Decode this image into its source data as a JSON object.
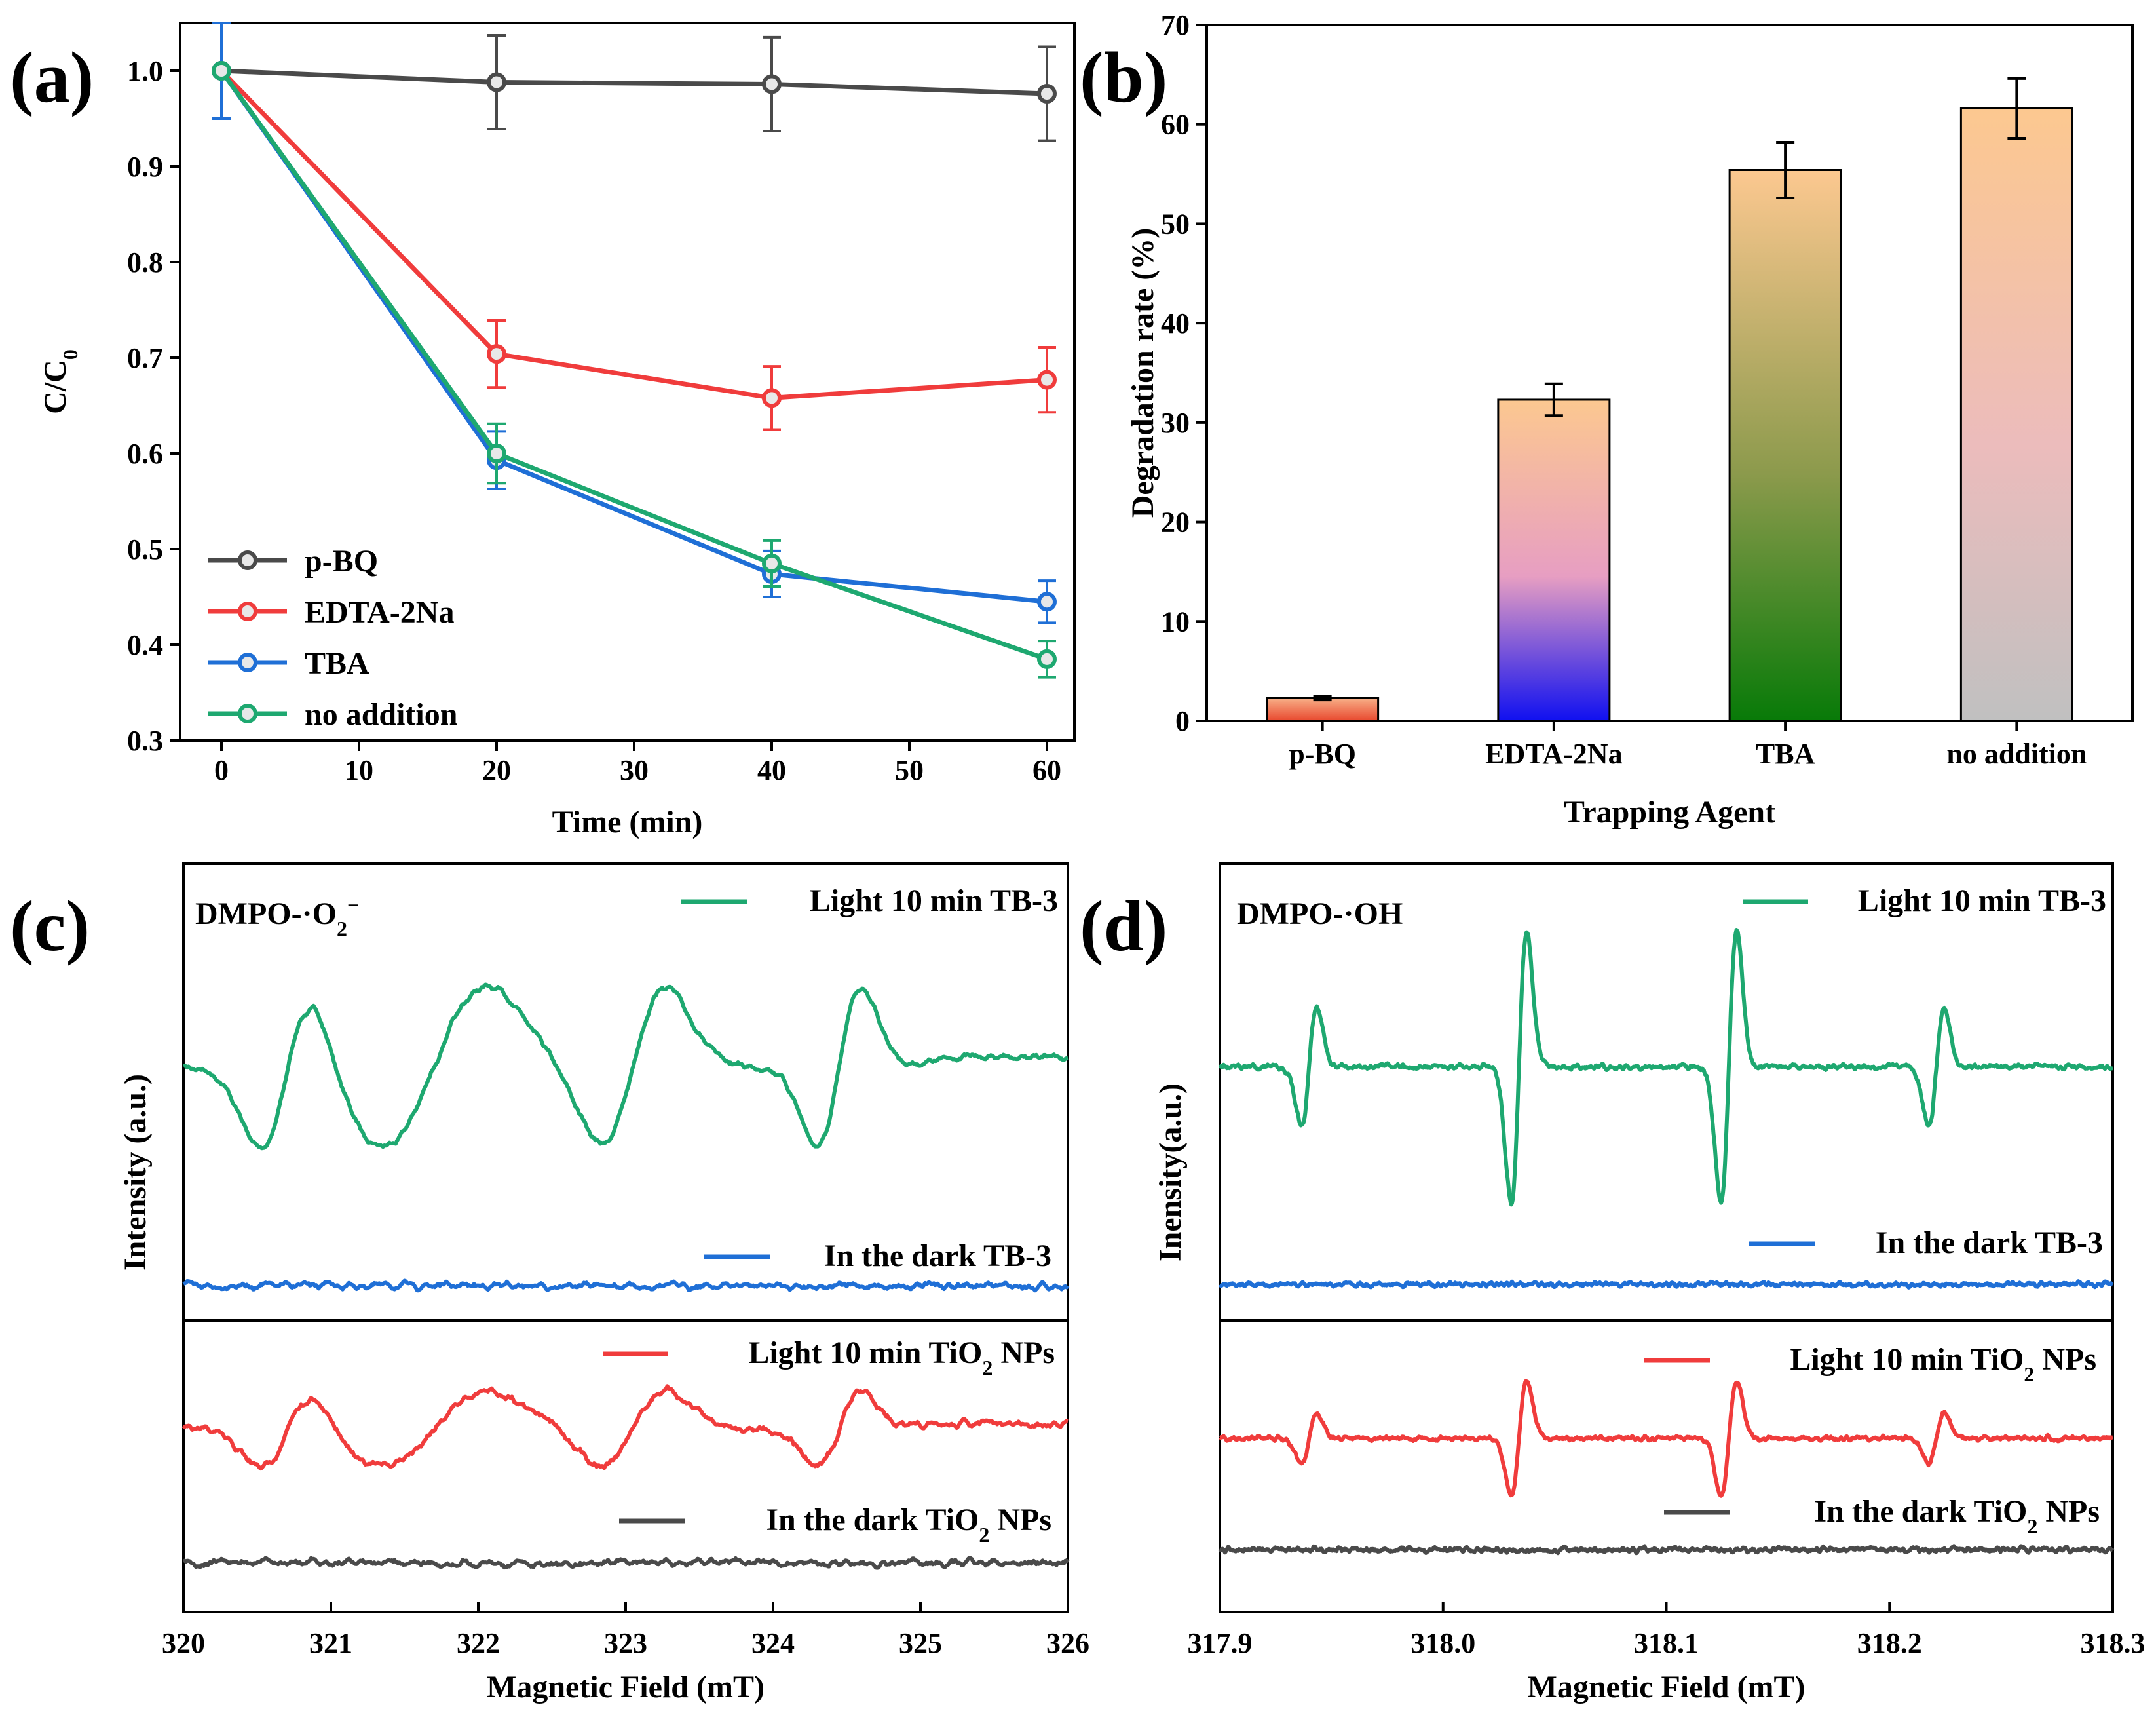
{
  "chart_data": [
    {
      "panel": "(a)",
      "type": "line",
      "xlabel": "Time (min)",
      "ylabel": "C/C0",
      "ylabel_main": "C/C",
      "ylabel_sub": "0",
      "xlim": [
        -3,
        62
      ],
      "ylim": [
        0.3,
        1.05
      ],
      "xticks": [
        0,
        10,
        20,
        30,
        40,
        50,
        60
      ],
      "yticks": [
        0.3,
        0.4,
        0.5,
        0.6,
        0.7,
        0.8,
        0.9,
        1.0
      ],
      "ytick_labels": [
        "0.3",
        "0.4",
        "0.5",
        "0.6",
        "0.7",
        "0.8",
        "0.9",
        "1.0"
      ],
      "x": [
        0,
        20,
        40,
        60
      ],
      "legend_position": "bottom-left",
      "series": [
        {
          "name": "p-BQ",
          "color": "#4a4a4a",
          "values": [
            1.0,
            0.988,
            0.986,
            0.976
          ],
          "errors": [
            0.0,
            0.049,
            0.049,
            0.049
          ]
        },
        {
          "name": "EDTA-2Na",
          "color": "#f03c3c",
          "values": [
            1.0,
            0.704,
            0.658,
            0.677
          ],
          "errors": [
            0.0,
            0.035,
            0.033,
            0.034
          ]
        },
        {
          "name": "TBA",
          "color": "#1f6fd6",
          "values": [
            1.0,
            0.593,
            0.474,
            0.445
          ],
          "errors": [
            0.05,
            0.03,
            0.024,
            0.022
          ]
        },
        {
          "name": "no addition",
          "color": "#1ea870",
          "values": [
            1.0,
            0.6,
            0.485,
            0.385
          ],
          "errors": [
            0.0,
            0.031,
            0.024,
            0.019
          ]
        }
      ]
    },
    {
      "panel": "(b)",
      "type": "bar",
      "xlabel": "Trapping Agent",
      "ylabel": "Degradation rate (%)",
      "ylim": [
        0,
        70
      ],
      "yticks": [
        0,
        10,
        20,
        30,
        40,
        50,
        60,
        70
      ],
      "categories": [
        "p-BQ",
        "EDTA-2Na",
        "TBA",
        "no addition"
      ],
      "values": [
        2.3,
        32.3,
        55.4,
        61.6
      ],
      "errors": [
        0.2,
        1.6,
        2.8,
        3.0
      ],
      "bar_gradients": [
        {
          "top": "#f8b088",
          "bottom": "#e8482e"
        },
        {
          "top": "#fcc890",
          "mid": "#e79ec2",
          "bottom": "#1010f0"
        },
        {
          "top": "#fcc890",
          "mid": "#8c9a4c",
          "bottom": "#087a08"
        },
        {
          "top": "#fcc890",
          "mid": "#ecbcbc",
          "bottom": "#c0c0c0"
        }
      ]
    },
    {
      "panel": "(c)",
      "type": "line",
      "title": "DMPO-·O2⁻",
      "title_main": "DMPO-·O",
      "title_sub": "2",
      "title_sup": "−",
      "xlabel": "Magnetic Field (mT)",
      "ylabel": "Intensity (a.u.)",
      "xlim": [
        320,
        326
      ],
      "xticks": [
        320,
        321,
        322,
        323,
        324,
        325,
        326
      ],
      "xtick_labels": [
        "320",
        "321",
        "322",
        "323",
        "324",
        "325",
        "326"
      ],
      "series": [
        {
          "name": "Light 10 min TB-3",
          "label_main": "Light 10 min TB-3",
          "label_sub": "",
          "color": "#1ea870",
          "sample": "TB-3",
          "condition": "light"
        },
        {
          "name": "In the dark TB-3",
          "label_main": "In the dark TB-3",
          "label_sub": "",
          "color": "#1f6fd6",
          "sample": "TB-3",
          "condition": "dark"
        },
        {
          "name": "Light 10 min TiO2 NPs",
          "label_main": "Light 10 min TiO",
          "label_sub": "2",
          "label_tail": " NPs",
          "color": "#f03c3c",
          "sample": "TiO2 NPs",
          "condition": "light"
        },
        {
          "name": "In the dark TiO2 NPs",
          "label_main": "In the dark TiO",
          "label_sub": "2",
          "label_tail": " NPs",
          "color": "#4a4a4a",
          "sample": "TiO2 NPs",
          "condition": "dark"
        }
      ],
      "signal_centers": [
        320.7,
        321.7,
        323.05,
        324.45
      ],
      "signal_widths": [
        0.36,
        0.72,
        0.44,
        0.3
      ]
    },
    {
      "panel": "(d)",
      "type": "line",
      "title": "DMPO-·OH",
      "xlabel": "Magnetic Field (mT)",
      "ylabel": "Inensity(a.u.)",
      "xlim": [
        317.9,
        318.3
      ],
      "xticks": [
        317.9,
        318.0,
        318.1,
        318.2,
        318.3
      ],
      "xtick_labels": [
        "317.9",
        "318.0",
        "318.1",
        "318.2",
        "318.3"
      ],
      "series": [
        {
          "name": "Light 10 min TB-3",
          "label_main": "Light 10 min TB-3",
          "label_sub": "",
          "color": "#1ea870",
          "sample": "TB-3",
          "condition": "light"
        },
        {
          "name": "In the dark TB-3",
          "label_main": "In the dark TB-3",
          "label_sub": "",
          "color": "#1f6fd6",
          "sample": "TB-3",
          "condition": "dark"
        },
        {
          "name": "Light 10 min TiO2 NPs",
          "label_main": "Light 10 min TiO",
          "label_sub": "2",
          "label_tail": " NPs",
          "color": "#f03c3c",
          "sample": "TiO2 NPs",
          "condition": "light"
        },
        {
          "name": "In the dark TiO2 NPs",
          "label_main": "In the dark TiO",
          "label_sub": "2",
          "label_tail": " NPs",
          "color": "#4a4a4a",
          "sample": "TiO2 NPs",
          "condition": "dark"
        }
      ],
      "line_positions": [
        317.94,
        318.034,
        318.128,
        318.221
      ],
      "line_relative_amplitudes": [
        1,
        2.3,
        2.3,
        1
      ]
    }
  ]
}
